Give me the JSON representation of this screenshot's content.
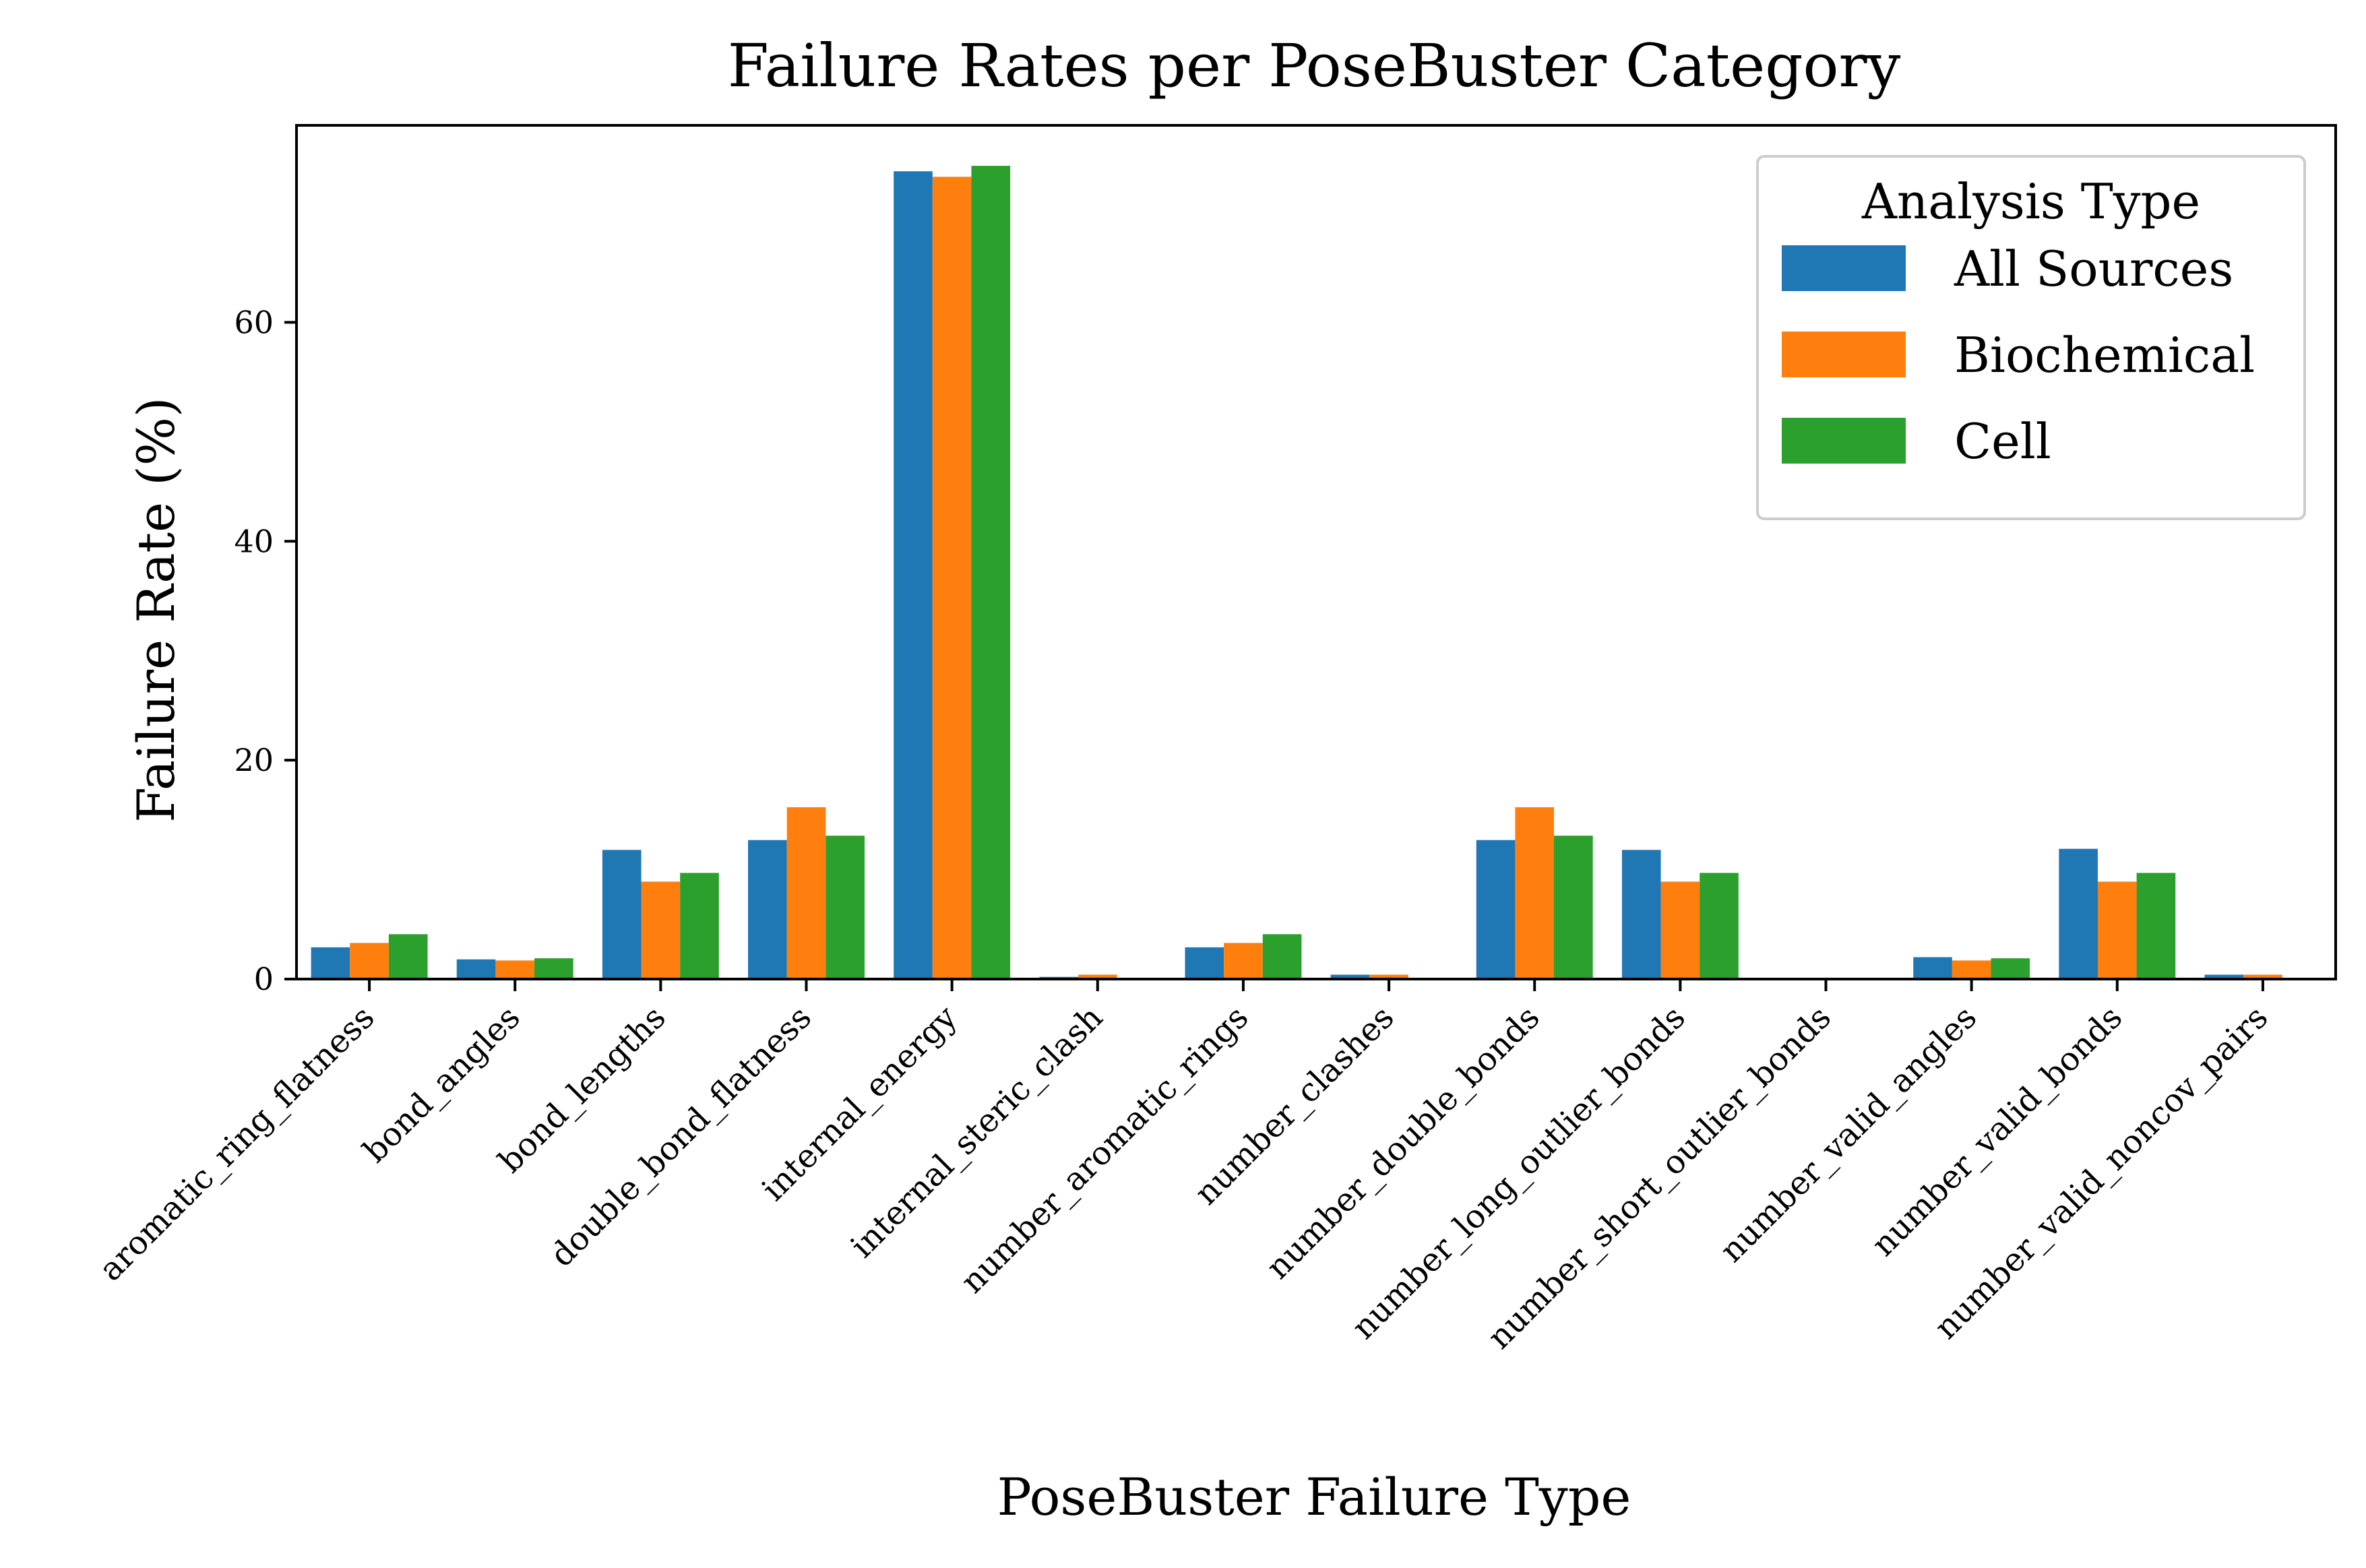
{
  "chart_data": {
    "type": "bar",
    "title": "Failure Rates per PoseBuster Category",
    "xlabel": "PoseBuster Failure Type",
    "ylabel": "Failure Rate (%)",
    "ylim": [
      0,
      78
    ],
    "yticks": [
      0,
      20,
      40,
      60
    ],
    "grid": false,
    "legend": {
      "title": "Analysis Type",
      "position": "top-right"
    },
    "categories": [
      "aromatic_ring_flatness",
      "bond_angles",
      "bond_lengths",
      "double_bond_flatness",
      "internal_energy",
      "internal_steric_clash",
      "number_aromatic_rings",
      "number_clashes",
      "number_double_bonds",
      "number_long_outlier_bonds",
      "number_short_outlier_bonds",
      "number_valid_angles",
      "number_valid_bonds",
      "number_valid_noncov_pairs"
    ],
    "series": [
      {
        "name": "All Sources",
        "color": "#1f77b4",
        "values": [
          2.9,
          1.8,
          11.8,
          12.7,
          73.8,
          0.2,
          2.9,
          0.4,
          12.7,
          11.8,
          0.0,
          2.0,
          11.9,
          0.4
        ]
      },
      {
        "name": "Biochemical",
        "color": "#ff7f0e",
        "values": [
          3.3,
          1.7,
          8.9,
          15.7,
          73.3,
          0.4,
          3.3,
          0.4,
          15.7,
          8.9,
          0.0,
          1.7,
          8.9,
          0.4
        ]
      },
      {
        "name": "Cell",
        "color": "#2ca02c",
        "values": [
          4.1,
          1.9,
          9.7,
          13.1,
          74.3,
          0.0,
          4.1,
          0.0,
          13.1,
          9.7,
          0.0,
          1.9,
          9.7,
          0.0
        ]
      }
    ]
  }
}
